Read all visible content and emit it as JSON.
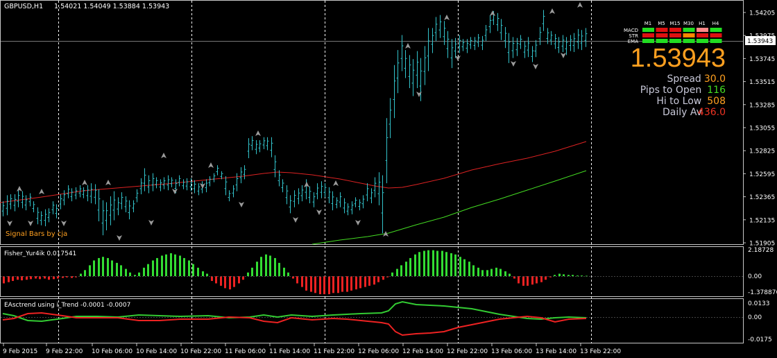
{
  "chart_header": {
    "symbol": "GBPUSD,H1",
    "ohlc": "1.54021 1.54049 1.53884 1.53943"
  },
  "price_axis": {
    "ticks": [
      "1.54205",
      "1.53975",
      "1.53745",
      "1.53515",
      "1.53285",
      "1.53055",
      "1.52825",
      "1.52595",
      "1.52365",
      "1.52135",
      "1.51905"
    ],
    "current": "1.53943"
  },
  "time_axis": {
    "labels": [
      "9 Feb 2015",
      "9 Feb 22:00",
      "10 Feb 06:00",
      "10 Feb 14:00",
      "10 Feb 22:00",
      "11 Feb 06:00",
      "11 Feb 14:00",
      "11 Feb 22:00",
      "12 Feb 06:00",
      "12 Feb 14:00",
      "12 Feb 22:00",
      "13 Feb 06:00",
      "13 Feb 14:00",
      "13 Feb 22:00"
    ]
  },
  "signal_label": "Signal Bars by cja",
  "signal_panel": {
    "rows": [
      "MACD",
      "STR",
      "EMA"
    ],
    "timeframes": [
      "M1",
      "M5",
      "M15",
      "M30",
      "H1",
      "H4"
    ],
    "colors": [
      [
        "#22dd22",
        "#dd1111",
        "#dd1111",
        "#22dd22",
        "#ff8888",
        "#22dd22"
      ],
      [
        "#dd1111",
        "#dd1111",
        "#dd1111",
        "#ff8800",
        "#dd1111",
        "#dd1111"
      ],
      [
        "#22dd22",
        "#22dd22",
        "#22dd22",
        "#22dd22",
        "#22dd22",
        "#22dd22"
      ]
    ]
  },
  "info": {
    "price": "1.53943",
    "spread_label": "Spread",
    "spread_value": "30.0",
    "pips_label": "Pips to Open",
    "pips_value": "116",
    "hilo_label": "Hi to Low",
    "hilo_value": "508",
    "daily_label": "Daily Av",
    "daily_value": "436.0"
  },
  "fisher": {
    "title": "Fisher_Yur4ik 0.017541",
    "ticks": [
      "2.18728",
      "0.00",
      "-1.378876"
    ]
  },
  "eas": {
    "title": "EAsctrend using i_Trend -0.0001 -0.0007",
    "ticks": [
      "0.0133",
      "0.00",
      "-0.0175"
    ]
  },
  "colors": {
    "bars": "#33c4cc",
    "ma_red": "#dd2222",
    "ma_green": "#44dd22",
    "hist_green": "#33dd33",
    "hist_red": "#ee2222",
    "price_text": "#ffa020",
    "grid": "#ffffff",
    "arrow": "#9a9a9a"
  },
  "chart_data": {
    "type": "ohlc",
    "price_range": [
      1.51905,
      1.54205
    ],
    "bars_lo_hi": [
      [
        1.5217,
        1.5232
      ],
      [
        1.5218,
        1.5238
      ],
      [
        1.5224,
        1.5239
      ],
      [
        1.5222,
        1.5239
      ],
      [
        1.5226,
        1.5243
      ],
      [
        1.5225,
        1.5242
      ],
      [
        1.5223,
        1.5238
      ],
      [
        1.5227,
        1.524
      ],
      [
        1.5221,
        1.5232
      ],
      [
        1.5209,
        1.5226
      ],
      [
        1.5208,
        1.5222
      ],
      [
        1.5207,
        1.5224
      ],
      [
        1.5211,
        1.5225
      ],
      [
        1.5219,
        1.5232
      ],
      [
        1.5215,
        1.5229
      ],
      [
        1.5224,
        1.5239
      ],
      [
        1.5228,
        1.5243
      ],
      [
        1.5235,
        1.5248
      ],
      [
        1.5232,
        1.5245
      ],
      [
        1.5234,
        1.5246
      ],
      [
        1.5236,
        1.5248
      ],
      [
        1.5235,
        1.5246
      ],
      [
        1.5232,
        1.5248
      ],
      [
        1.523,
        1.525
      ],
      [
        1.5229,
        1.5249
      ],
      [
        1.5212,
        1.5244
      ],
      [
        1.5198,
        1.5233
      ],
      [
        1.5203,
        1.5231
      ],
      [
        1.5208,
        1.5237
      ],
      [
        1.5213,
        1.5242
      ],
      [
        1.5218,
        1.5236
      ],
      [
        1.5224,
        1.5241
      ],
      [
        1.5221,
        1.5237
      ],
      [
        1.5214,
        1.5233
      ],
      [
        1.5221,
        1.5233
      ],
      [
        1.5231,
        1.5244
      ],
      [
        1.5239,
        1.5255
      ],
      [
        1.5242,
        1.5265
      ],
      [
        1.524,
        1.5258
      ],
      [
        1.5242,
        1.526
      ],
      [
        1.5245,
        1.5256
      ],
      [
        1.5242,
        1.5254
      ],
      [
        1.5244,
        1.5256
      ],
      [
        1.5243,
        1.5258
      ],
      [
        1.5246,
        1.5256
      ],
      [
        1.524,
        1.5254
      ],
      [
        1.5247,
        1.5258
      ],
      [
        1.5244,
        1.5254
      ],
      [
        1.5243,
        1.5255
      ],
      [
        1.5242,
        1.5255
      ],
      [
        1.524,
        1.5253
      ],
      [
        1.5238,
        1.525
      ],
      [
        1.524,
        1.5252
      ],
      [
        1.5241,
        1.5254
      ],
      [
        1.5247,
        1.5257
      ],
      [
        1.5251,
        1.526
      ],
      [
        1.5258,
        1.5268
      ],
      [
        1.5254,
        1.5262
      ],
      [
        1.5238,
        1.5257
      ],
      [
        1.5232,
        1.5243
      ],
      [
        1.5236,
        1.5248
      ],
      [
        1.5242,
        1.526
      ],
      [
        1.525,
        1.5266
      ],
      [
        1.5254,
        1.5268
      ],
      [
        1.5275,
        1.5295
      ],
      [
        1.5283,
        1.5297
      ],
      [
        1.5279,
        1.5293
      ],
      [
        1.5281,
        1.5293
      ],
      [
        1.5284,
        1.5296
      ],
      [
        1.5283,
        1.5296
      ],
      [
        1.5276,
        1.5296
      ],
      [
        1.5256,
        1.5278
      ],
      [
        1.5247,
        1.5263
      ],
      [
        1.5241,
        1.5254
      ],
      [
        1.5229,
        1.5248
      ],
      [
        1.522,
        1.5238
      ],
      [
        1.5226,
        1.5243
      ],
      [
        1.5229,
        1.5245
      ],
      [
        1.5232,
        1.5248
      ],
      [
        1.5234,
        1.5254
      ],
      [
        1.523,
        1.5247
      ],
      [
        1.5226,
        1.5241
      ],
      [
        1.5234,
        1.525
      ],
      [
        1.5235,
        1.5252
      ],
      [
        1.5236,
        1.525
      ],
      [
        1.523,
        1.5246
      ],
      [
        1.5223,
        1.5242
      ],
      [
        1.5225,
        1.5236
      ],
      [
        1.5226,
        1.5241
      ],
      [
        1.522,
        1.5235
      ],
      [
        1.5218,
        1.523
      ],
      [
        1.5219,
        1.5232
      ],
      [
        1.5226,
        1.5236
      ],
      [
        1.5223,
        1.5234
      ],
      [
        1.5225,
        1.5238
      ],
      [
        1.5232,
        1.525
      ],
      [
        1.523,
        1.5245
      ],
      [
        1.5236,
        1.5256
      ],
      [
        1.5228,
        1.5261
      ],
      [
        1.52,
        1.5258
      ],
      [
        1.525,
        1.5315
      ],
      [
        1.5295,
        1.5335
      ],
      [
        1.5315,
        1.5368
      ],
      [
        1.534,
        1.5383
      ],
      [
        1.5362,
        1.5398
      ],
      [
        1.5355,
        1.5383
      ],
      [
        1.5345,
        1.5378
      ],
      [
        1.5337,
        1.5374
      ],
      [
        1.5345,
        1.5382
      ],
      [
        1.5332,
        1.5375
      ],
      [
        1.5348,
        1.5387
      ],
      [
        1.5362,
        1.5405
      ],
      [
        1.538,
        1.5405
      ],
      [
        1.5392,
        1.5416
      ],
      [
        1.5395,
        1.5418
      ],
      [
        1.5388,
        1.5412
      ],
      [
        1.5375,
        1.5402
      ],
      [
        1.5365,
        1.5394
      ],
      [
        1.5375,
        1.5395
      ],
      [
        1.538,
        1.5398
      ],
      [
        1.5382,
        1.5394
      ],
      [
        1.538,
        1.5394
      ],
      [
        1.5384,
        1.5396
      ],
      [
        1.5383,
        1.5396
      ],
      [
        1.5386,
        1.5399
      ],
      [
        1.5383,
        1.5397
      ],
      [
        1.5392,
        1.5408
      ],
      [
        1.54,
        1.5418
      ],
      [
        1.5408,
        1.5422
      ],
      [
        1.5402,
        1.542
      ],
      [
        1.5393,
        1.5414
      ],
      [
        1.5385,
        1.5406
      ],
      [
        1.537,
        1.54
      ],
      [
        1.5375,
        1.5396
      ],
      [
        1.5377,
        1.5395
      ],
      [
        1.5384,
        1.5398
      ],
      [
        1.5375,
        1.5392
      ],
      [
        1.5376,
        1.5396
      ],
      [
        1.5371,
        1.5387
      ],
      [
        1.5376,
        1.5393
      ],
      [
        1.5388,
        1.5406
      ],
      [
        1.5402,
        1.5423
      ],
      [
        1.5389,
        1.5405
      ],
      [
        1.5388,
        1.5402
      ],
      [
        1.5384,
        1.5399
      ],
      [
        1.538,
        1.5396
      ],
      [
        1.5381,
        1.5398
      ],
      [
        1.5378,
        1.5396
      ],
      [
        1.5382,
        1.5398
      ],
      [
        1.5381,
        1.54
      ],
      [
        1.5384,
        1.5404
      ],
      [
        1.5383,
        1.5403
      ],
      [
        1.5386,
        1.5405
      ]
    ],
    "fisher_hist": [
      -0.6,
      -0.5,
      -0.4,
      -0.3,
      -0.35,
      -0.3,
      -0.25,
      -0.2,
      -0.25,
      -0.2,
      -0.3,
      -0.25,
      -0.2,
      -0.15,
      -0.1,
      -0.15,
      -0.1,
      0.2,
      0.5,
      0.9,
      1.3,
      1.5,
      1.6,
      1.5,
      1.3,
      1.1,
      0.9,
      0.6,
      0.3,
      0.1,
      0.3,
      0.7,
      1.0,
      1.3,
      1.5,
      1.7,
      1.8,
      1.9,
      1.8,
      1.7,
      1.5,
      1.3,
      1.0,
      0.7,
      0.4,
      0.2,
      -0.4,
      -0.6,
      -0.8,
      -1.0,
      -1.1,
      -0.9,
      -0.6,
      -0.3,
      0.3,
      0.7,
      1.2,
      1.6,
      1.8,
      1.7,
      1.5,
      1.1,
      0.7,
      0.3,
      -0.2,
      -0.6,
      -0.9,
      -1.2,
      -1.3,
      -1.4,
      -1.5,
      -1.5,
      -1.5,
      -1.4,
      -1.4,
      -1.3,
      -1.3,
      -1.2,
      -1.1,
      -1.0,
      -0.9,
      -0.8,
      -0.7,
      -0.5,
      -0.3,
      -0.1,
      0.3,
      0.6,
      0.9,
      1.2,
      1.5,
      1.8,
      2.0,
      2.1,
      2.15,
      2.15,
      2.1,
      2.1,
      2.0,
      1.9,
      1.8,
      1.6,
      1.4,
      1.2,
      0.9,
      0.7,
      0.5,
      0.5,
      0.6,
      0.7,
      0.6,
      0.4,
      0.2,
      -0.2,
      -0.6,
      -0.8,
      -0.8,
      -0.7,
      -0.6,
      -0.5,
      -0.3,
      -0.1,
      0.1,
      0.2,
      0.15,
      0.1,
      0.1,
      0.05,
      0.05,
      0.03
    ]
  }
}
